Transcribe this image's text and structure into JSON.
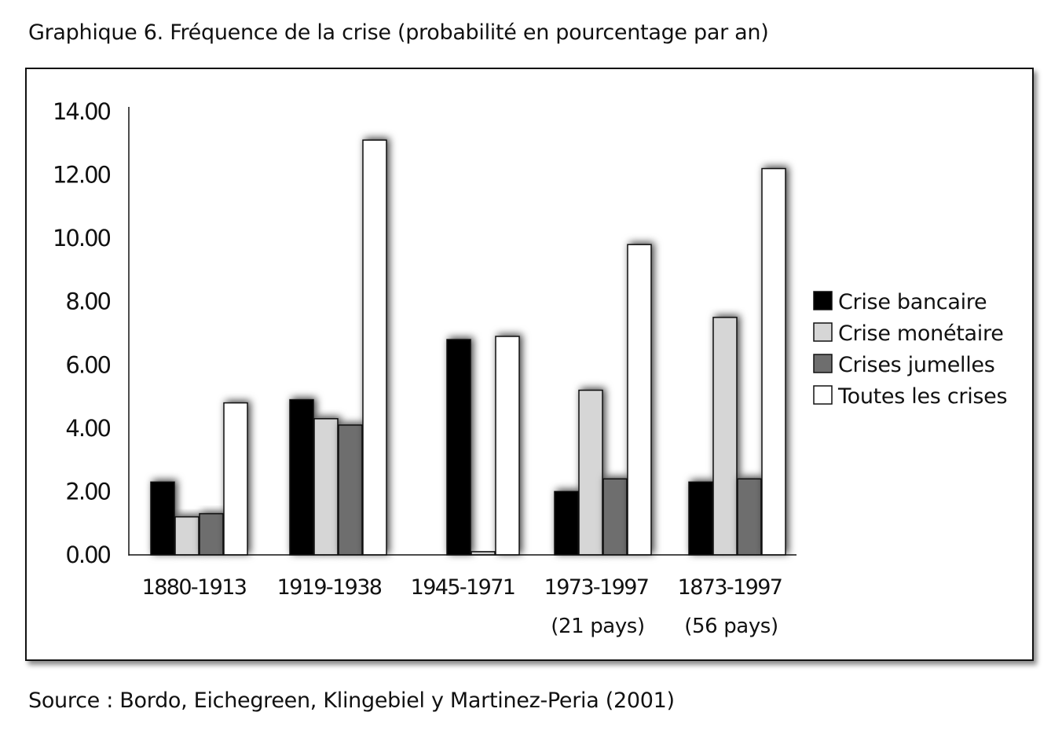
{
  "title": "Graphique 6. Fréquence de la crise (probabilité en pourcentage par an)",
  "source": "Source : Bordo, Eichegreen, Klingebiel y Martinez-Peria (2001)",
  "chart_data": {
    "type": "bar",
    "title": "",
    "xlabel": "",
    "ylabel": "",
    "ylim": [
      0,
      14
    ],
    "yticks": [
      "0.00",
      "2.00",
      "4.00",
      "6.00",
      "8.00",
      "10.00",
      "12.00",
      "14.00"
    ],
    "ytick_values": [
      0,
      2,
      4,
      6,
      8,
      10,
      12,
      14
    ],
    "grid": false,
    "legend_position": "right",
    "categories": [
      "1880-1913",
      "1919-1938",
      "1945-1971",
      "1973-1997",
      "1873-1997"
    ],
    "category_notes": [
      "",
      "",
      "",
      "(21 pays)",
      "(56 pays)"
    ],
    "series": [
      {
        "name": "Crise bancaire",
        "color": "#000000",
        "values": [
          2.3,
          4.9,
          6.8,
          2.0,
          2.3
        ]
      },
      {
        "name": "Crise monétaire",
        "color": "#d6d6d6",
        "values": [
          1.2,
          4.3,
          0.1,
          5.2,
          7.5
        ]
      },
      {
        "name": "Crises jumelles",
        "color": "#6e6e6e",
        "values": [
          1.3,
          4.1,
          null,
          2.4,
          2.4
        ]
      },
      {
        "name": "Toutes les crises",
        "color": "#ffffff",
        "values": [
          4.8,
          13.1,
          6.9,
          9.8,
          12.2
        ]
      }
    ],
    "bar_positions": [
      [
        0,
        1,
        2,
        3
      ],
      [
        0,
        1,
        2,
        3
      ],
      [
        0,
        1,
        null,
        2
      ],
      [
        0,
        1,
        2,
        3
      ],
      [
        0,
        1,
        2,
        3
      ]
    ]
  }
}
